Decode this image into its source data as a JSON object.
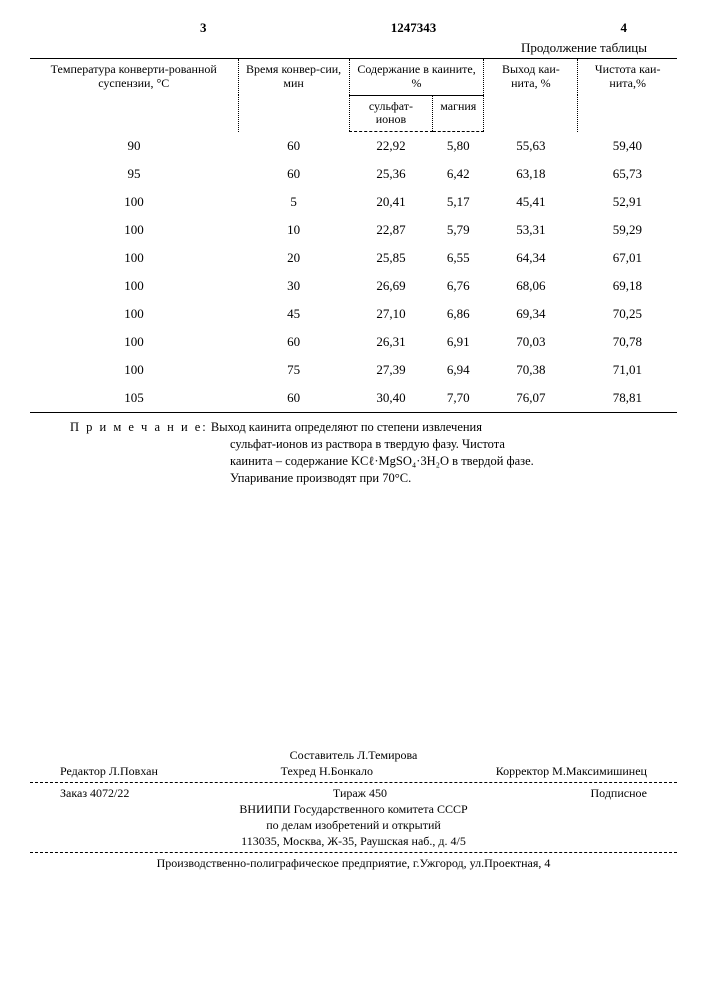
{
  "header": {
    "left_page": "3",
    "doc_number": "1247343",
    "right_page": "4",
    "continuation": "Продолжение таблицы"
  },
  "table": {
    "columns": {
      "c1": "Температура конверти-рованной суспензии, °С",
      "c2": "Время конвер-сии, мин",
      "c3_group": "Содержание в каините, %",
      "c3a": "сульфат-ионов",
      "c3b": "магния",
      "c4": "Выход каи-нита, %",
      "c5": "Чистота каи-нита,%"
    },
    "rows": [
      [
        "90",
        "60",
        "22,92",
        "5,80",
        "55,63",
        "59,40"
      ],
      [
        "95",
        "60",
        "25,36",
        "6,42",
        "63,18",
        "65,73"
      ],
      [
        "100",
        "5",
        "20,41",
        "5,17",
        "45,41",
        "52,91"
      ],
      [
        "100",
        "10",
        "22,87",
        "5,79",
        "53,31",
        "59,29"
      ],
      [
        "100",
        "20",
        "25,85",
        "6,55",
        "64,34",
        "67,01"
      ],
      [
        "100",
        "30",
        "26,69",
        "6,76",
        "68,06",
        "69,18"
      ],
      [
        "100",
        "45",
        "27,10",
        "6,86",
        "69,34",
        "70,25"
      ],
      [
        "100",
        "60",
        "26,31",
        "6,91",
        "70,03",
        "70,78"
      ],
      [
        "100",
        "75",
        "27,39",
        "6,94",
        "70,38",
        "71,01"
      ],
      [
        "105",
        "60",
        "30,40",
        "7,70",
        "76,07",
        "78,81"
      ]
    ]
  },
  "note": {
    "label": "П р и м е ч а н и е:",
    "line1": "Выход каинита определяют по степени извлечения",
    "line2": "сульфат-ионов из раствора в твердую фазу. Чистота",
    "line3": "каинита – содержание KCℓ·MgSO₄·3H₂O в твердой фазе.",
    "line4": "Упаривание производят при 70°С."
  },
  "footer": {
    "compiler": "Составитель Л.Темирова",
    "editor": "Редактор Л.Повхан",
    "techred": "Техред Н.Бонкало",
    "corrector": "Корректор М.Максимишинец",
    "order": "Заказ 4072/22",
    "tirage": "Тираж 450",
    "sub": "Подписное",
    "org1": "ВНИИПИ Государственного комитета СССР",
    "org2": "по делам изобретений и открытий",
    "addr": "113035, Москва, Ж-35, Раушская наб., д. 4/5",
    "print": "Производственно-полиграфическое предприятие, г.Ужгород, ул.Проектная, 4"
  }
}
